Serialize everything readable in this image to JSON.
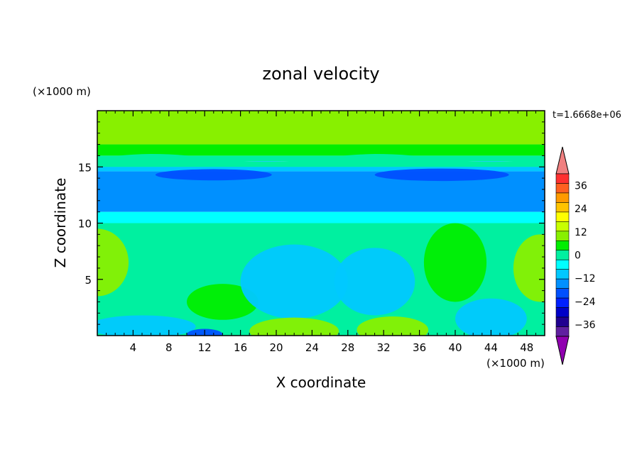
{
  "chart_data": {
    "type": "heatmap",
    "title": "zonal velocity",
    "xlabel": "X coordinate",
    "ylabel": "Z coordinate",
    "x_unit": "(×1000 m)",
    "y_unit": "(×1000 m)",
    "time_label": "t=1.6668e+06",
    "xlim": [
      0,
      50
    ],
    "ylim": [
      0,
      20
    ],
    "x_ticks": [
      "4",
      "8",
      "12",
      "16",
      "20",
      "24",
      "28",
      "32",
      "36",
      "40",
      "44",
      "48"
    ],
    "y_ticks": [
      "5",
      "10",
      "15"
    ],
    "colorbar": {
      "labels": [
        "36",
        "24",
        "12",
        "0",
        "−12",
        "−24",
        "−36"
      ],
      "colors": [
        "#f08080",
        "#ff3030",
        "#ff6020",
        "#ff9a00",
        "#ffc400",
        "#ffff00",
        "#c8ff00",
        "#88f000",
        "#00ee00",
        "#00f0a0",
        "#00ffff",
        "#00c8ff",
        "#0090ff",
        "#0050ff",
        "#0020ff",
        "#0000c8",
        "#200090",
        "#6020a0",
        "#9000b0"
      ]
    },
    "bands": [
      {
        "z": [
          17.0,
          20.0
        ],
        "value": 12
      },
      {
        "z": [
          16.0,
          17.0
        ],
        "value": 8
      },
      {
        "z": [
          15.5,
          16.0
        ],
        "value": 0
      },
      {
        "z": [
          14.6,
          15.5
        ],
        "value": -6
      },
      {
        "z": [
          11.0,
          14.6
        ],
        "value": -10
      },
      {
        "z": [
          10.0,
          11.0
        ],
        "value": -4
      },
      {
        "z": [
          0.0,
          10.0
        ],
        "value": 0
      }
    ],
    "blobs": [
      {
        "x": 0.0,
        "z": 6.5,
        "rx": 3.5,
        "rz": 3.0,
        "value": 12
      },
      {
        "x": 14.0,
        "z": 3.0,
        "rx": 4.0,
        "rz": 1.6,
        "value": 8
      },
      {
        "x": 5.0,
        "z": 0.8,
        "rx": 6.0,
        "rz": 1.0,
        "value": -8
      },
      {
        "x": 22.0,
        "z": 4.8,
        "rx": 6.0,
        "rz": 3.3,
        "value": -8
      },
      {
        "x": 22.0,
        "z": 0.4,
        "rx": 5.0,
        "rz": 1.2,
        "value": 12
      },
      {
        "x": 31.0,
        "z": 4.8,
        "rx": 4.5,
        "rz": 3.0,
        "value": -5
      },
      {
        "x": 33.0,
        "z": 0.5,
        "rx": 4.0,
        "rz": 1.2,
        "value": 12
      },
      {
        "x": 40.0,
        "z": 6.5,
        "rx": 3.5,
        "rz": 3.5,
        "value": 8
      },
      {
        "x": 44.0,
        "z": 1.5,
        "rx": 4.0,
        "rz": 1.8,
        "value": -8
      },
      {
        "x": 49.5,
        "z": 6.0,
        "rx": 3.0,
        "rz": 3.0,
        "value": 12
      },
      {
        "x": 13.0,
        "z": 14.3,
        "rx": 6.5,
        "rz": 0.5,
        "value": -16
      },
      {
        "x": 38.5,
        "z": 14.3,
        "rx": 7.5,
        "rz": 0.55,
        "value": -16
      },
      {
        "x": 12.0,
        "z": 0.1,
        "rx": 2.0,
        "rz": 0.5,
        "value": -16
      }
    ]
  }
}
